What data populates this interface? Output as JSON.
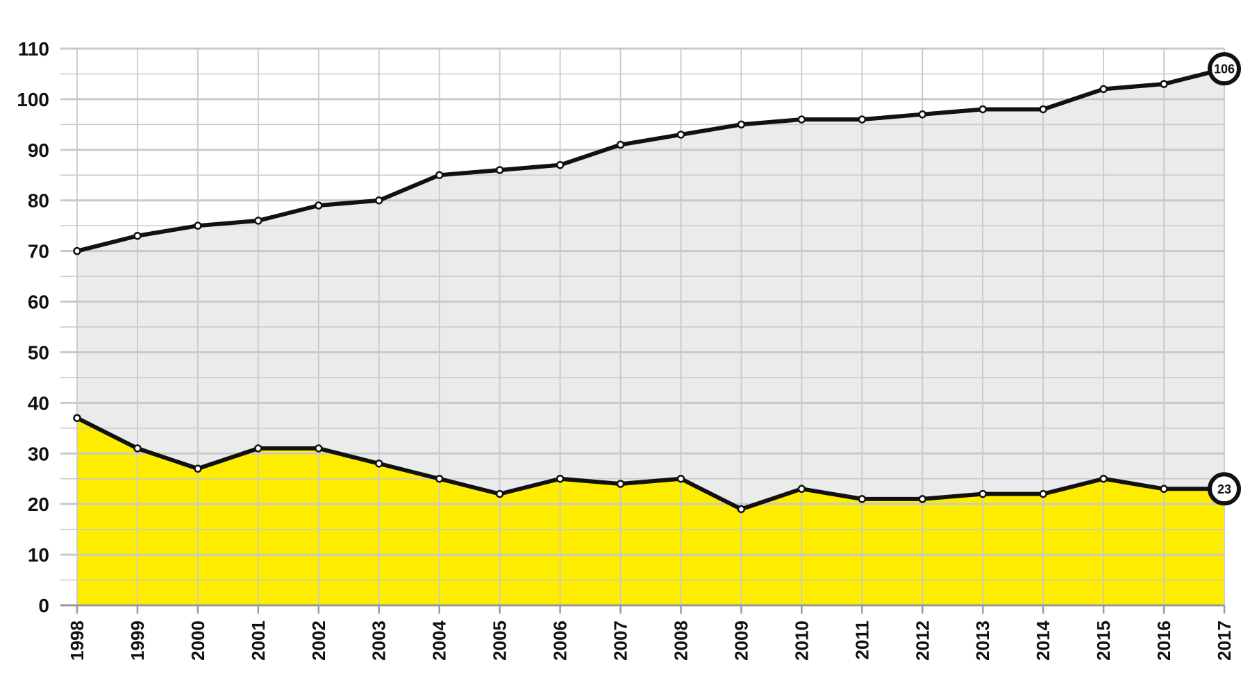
{
  "chart_data": {
    "type": "area",
    "x": [
      1998,
      1999,
      2000,
      2001,
      2002,
      2003,
      2004,
      2005,
      2006,
      2007,
      2008,
      2009,
      2010,
      2011,
      2012,
      2013,
      2014,
      2015,
      2016,
      2017
    ],
    "series": [
      {
        "values": [
          70,
          73,
          75,
          76,
          79,
          80,
          85,
          86,
          87,
          91,
          93,
          95,
          96,
          96,
          97,
          98,
          98,
          102,
          103,
          106
        ],
        "fill": "#ecebec",
        "line": "#111111",
        "end_label": "106"
      },
      {
        "values": [
          37,
          31,
          27,
          31,
          31,
          28,
          25,
          22,
          25,
          24,
          25,
          19,
          23,
          21,
          21,
          22,
          22,
          25,
          23,
          23
        ],
        "fill": "#ffed00",
        "line": "#111111",
        "end_label": "23"
      }
    ],
    "yticks": [
      0,
      10,
      20,
      30,
      40,
      50,
      60,
      70,
      80,
      90,
      100,
      110
    ],
    "ylim": [
      0,
      110
    ],
    "grid": true,
    "colors": {
      "grid": "#c9c9c9",
      "line": "#111111",
      "upper_fill": "#ecebec",
      "lower_fill": "#ffed00",
      "background": "#ffffff"
    }
  }
}
